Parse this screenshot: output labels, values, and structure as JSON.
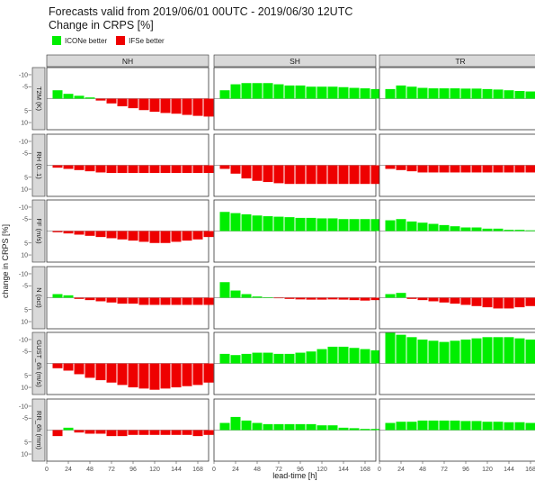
{
  "title": "Forecasts valid from 2019/06/01 00UTC - 2019/06/30 12UTC",
  "subtitle": "Change in CRPS [%]",
  "colors": {
    "better_icon": "#00ee00",
    "better_ifs": "#ee0000",
    "strip": "#d9d9d9",
    "panel_border": "#333333"
  },
  "legend": [
    {
      "label": "ICONe better",
      "color": "#00ee00"
    },
    {
      "label": "IFSe better",
      "color": "#ee0000"
    }
  ],
  "chart_data": {
    "type": "bar",
    "facet_cols": [
      "NH",
      "SH",
      "TR"
    ],
    "facet_rows": [
      "T2M (K)",
      "RH (0..1)",
      "FF (m/s)",
      "N (oct)",
      "GUST_6h (m/s)",
      "RR_6h (mm)"
    ],
    "xlabel": "lead-time [h]",
    "ylabel": "change in CRPS [%]",
    "x": [
      12,
      24,
      36,
      48,
      60,
      72,
      84,
      96,
      108,
      120,
      132,
      144,
      156,
      168,
      180
    ],
    "x_ticks": [
      0,
      24,
      48,
      72,
      96,
      120,
      144,
      168
    ],
    "xlim": [
      0,
      180
    ],
    "y_ticks": [
      -10,
      -5,
      5,
      10
    ],
    "y_tick_labels": [
      "-10",
      "-5",
      "5",
      "10"
    ],
    "ylim": [
      -13,
      13
    ],
    "y_reversed": true,
    "panels": [
      [
        {
          "values": [
            -3.5,
            -2,
            -1.2,
            -0.5,
            0.8,
            2,
            3.2,
            4,
            4.8,
            5.5,
            6,
            6.3,
            6.8,
            7.2,
            7.5
          ]
        },
        {
          "values": [
            -3.5,
            -6,
            -6.5,
            -6.5,
            -6.5,
            -6,
            -5.5,
            -5.5,
            -5,
            -5,
            -5,
            -4.8,
            -4.5,
            -4.3,
            -4
          ]
        },
        {
          "values": [
            -4,
            -5.5,
            -5,
            -4.5,
            -4.3,
            -4.3,
            -4.3,
            -4.2,
            -4.2,
            -4,
            -3.8,
            -3.5,
            -3.2,
            -3,
            -3
          ]
        }
      ],
      [
        {
          "values": [
            1,
            1.5,
            2,
            2.5,
            3,
            3.2,
            3.2,
            3.2,
            3.2,
            3.2,
            3.2,
            3.2,
            3.2,
            3.2,
            3.2
          ]
        },
        {
          "values": [
            1.5,
            3.5,
            5.5,
            6.5,
            7,
            7.5,
            7.8,
            7.8,
            7.8,
            7.8,
            7.8,
            7.8,
            7.8,
            7.8,
            7.8
          ]
        },
        {
          "values": [
            1.5,
            2,
            2.5,
            3,
            3,
            3,
            3,
            3,
            3,
            3,
            3,
            3,
            3,
            3,
            3
          ]
        }
      ],
      [
        {
          "values": [
            0.5,
            1,
            1.5,
            2,
            2.5,
            3,
            3.5,
            4,
            4.5,
            5,
            5,
            4.5,
            4,
            3.5,
            2.5
          ]
        },
        {
          "values": [
            -8,
            -7.5,
            -7,
            -6.5,
            -6.2,
            -6,
            -5.8,
            -5.5,
            -5.5,
            -5.3,
            -5.3,
            -5,
            -5,
            -5,
            -5
          ]
        },
        {
          "values": [
            -4.5,
            -5,
            -4,
            -3.5,
            -3,
            -2.5,
            -2,
            -1.5,
            -1.5,
            -1,
            -1,
            -0.5,
            -0.5,
            -0.3,
            -0.3
          ]
        }
      ],
      [
        {
          "values": [
            -1.5,
            -1,
            0.5,
            1,
            1.5,
            2,
            2.5,
            2.5,
            3,
            3,
            3,
            3,
            3,
            3,
            3
          ]
        },
        {
          "values": [
            -6.5,
            -3,
            -1.5,
            -0.5,
            -0.2,
            0.2,
            0.5,
            0.7,
            0.8,
            0.8,
            0.7,
            0.8,
            1,
            1.2,
            1
          ]
        },
        {
          "values": [
            -1.5,
            -2,
            0.5,
            1,
            1.5,
            2,
            2.5,
            3,
            3.5,
            4,
            4.5,
            4.5,
            4,
            3.5,
            3
          ]
        }
      ],
      [
        {
          "values": [
            2,
            3,
            4.5,
            6,
            7,
            8,
            9,
            10,
            10.5,
            11,
            10.5,
            10,
            9.5,
            9,
            8
          ]
        },
        {
          "values": [
            -4,
            -3.5,
            -4,
            -4.5,
            -4.5,
            -4,
            -4,
            -4.5,
            -5,
            -6,
            -7,
            -7,
            -6.5,
            -6,
            -5.5
          ]
        },
        {
          "values": [
            -13,
            -12,
            -11,
            -10,
            -9.5,
            -9,
            -9.5,
            -10,
            -10.5,
            -11,
            -11,
            -11,
            -10.5,
            -10,
            -9
          ]
        }
      ],
      [
        {
          "values": [
            2.5,
            -1,
            1,
            1.5,
            1.5,
            2.5,
            2.5,
            2,
            2,
            2,
            2,
            2,
            2,
            2.5,
            2
          ]
        },
        {
          "values": [
            -3,
            -5.5,
            -4,
            -3,
            -2.5,
            -2.5,
            -2.5,
            -2.5,
            -2.5,
            -2,
            -2,
            -1,
            -0.8,
            -0.5,
            -0.5
          ]
        },
        {
          "values": [
            -3,
            -3.5,
            -3.5,
            -4,
            -4,
            -4,
            -4,
            -3.8,
            -3.8,
            -3.5,
            -3.5,
            -3.3,
            -3.3,
            -3,
            -3
          ]
        }
      ]
    ]
  }
}
